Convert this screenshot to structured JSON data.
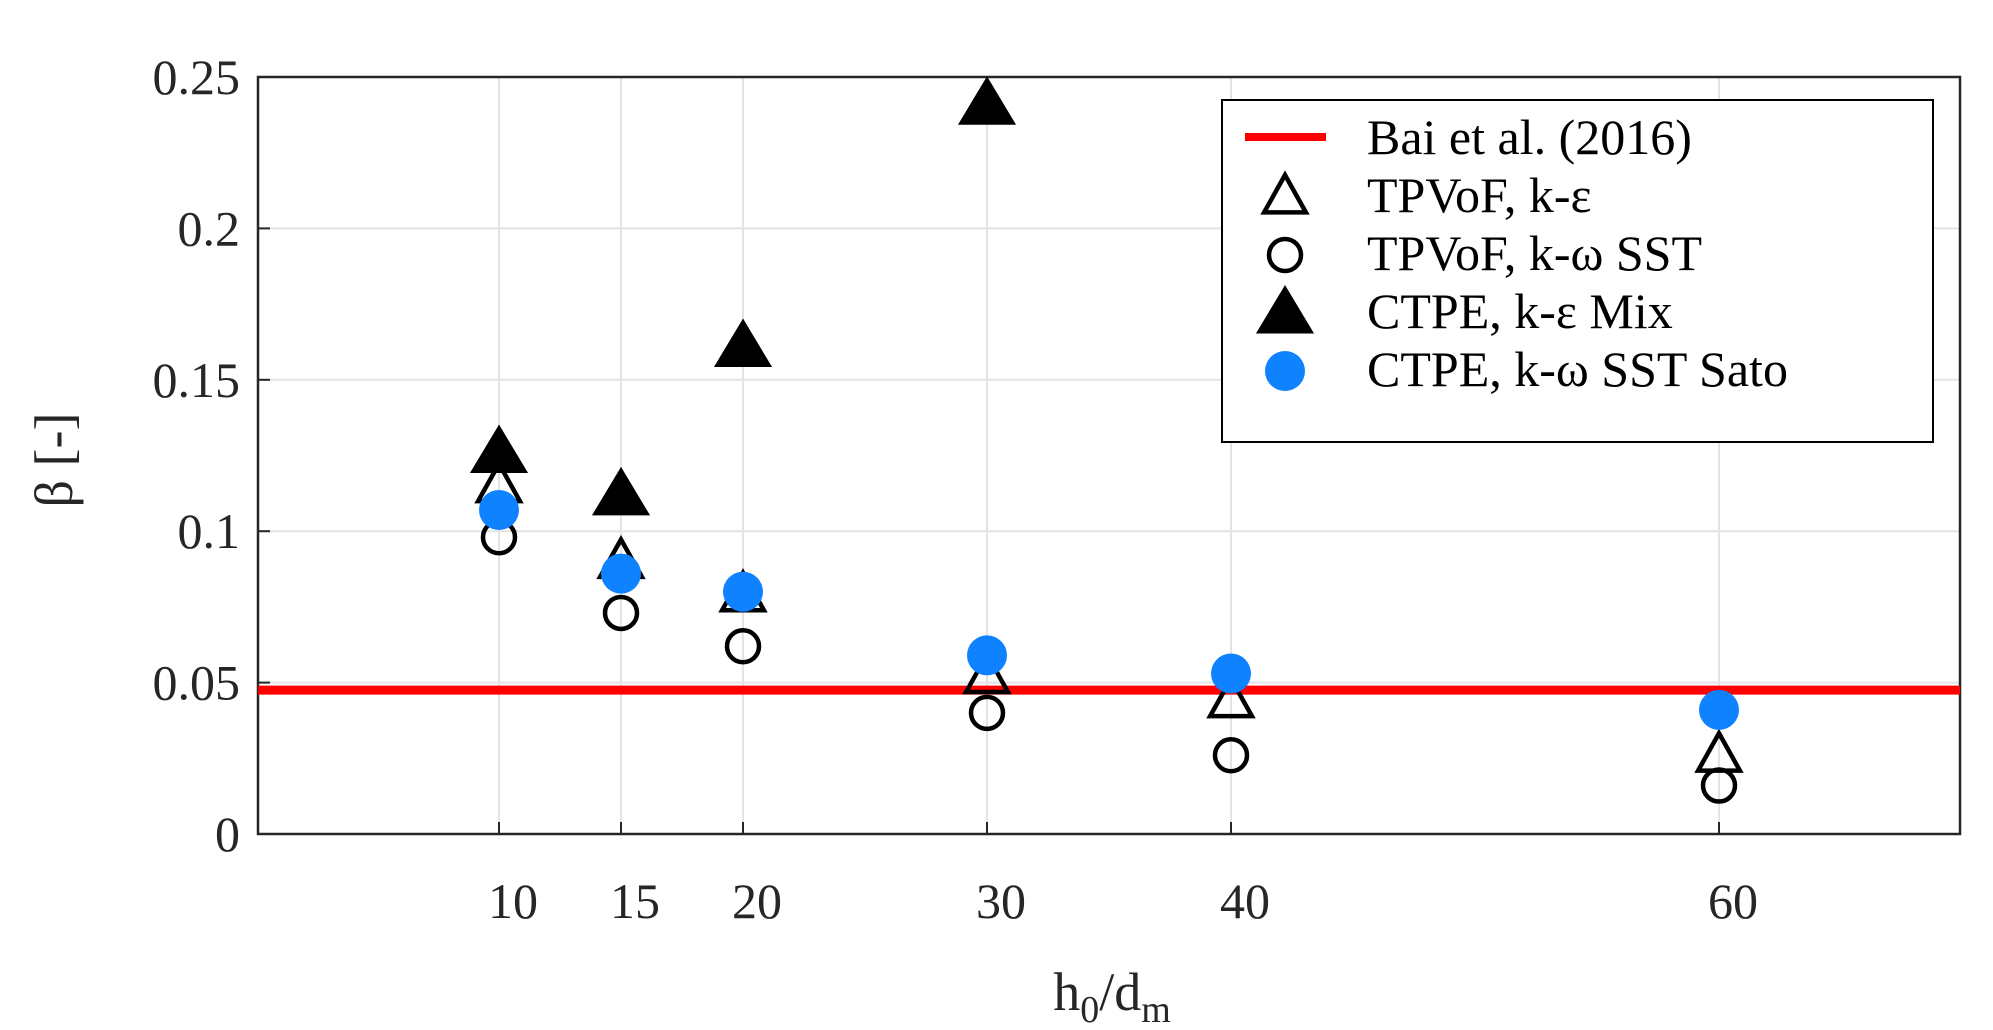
{
  "chart_data": {
    "type": "scatter",
    "title": "",
    "xlabel": {
      "main": "h",
      "sub1": "0",
      "mid": "/d",
      "sub2": "m"
    },
    "ylabel": "β [-]",
    "xlim": [
      0,
      70
    ],
    "ylim": [
      0,
      0.25
    ],
    "xticks": [
      10,
      15,
      20,
      30,
      40,
      60
    ],
    "xtick_labels": [
      "10",
      "15",
      "20",
      "30",
      "40",
      "60"
    ],
    "yticks": [
      0,
      0.05,
      0.1,
      0.15,
      0.2,
      0.25
    ],
    "ytick_labels": [
      "0",
      "0.05",
      "0.1",
      "0.15",
      "0.2",
      "0.25"
    ],
    "grid": true,
    "legend_position": "top-right",
    "reference_line": {
      "name": "Bai et al. (2016)",
      "y": 0.0475,
      "color": "#ff0000"
    },
    "series": [
      {
        "name": "TPVoF, k-ε",
        "marker": "triangle-open",
        "color": "#000000",
        "x": [
          10,
          15,
          20,
          30,
          40,
          60
        ],
        "y": [
          0.115,
          0.09,
          0.079,
          0.052,
          0.044,
          0.026
        ]
      },
      {
        "name": "TPVoF, k-ω SST",
        "marker": "circle-open",
        "color": "#000000",
        "x": [
          10,
          15,
          20,
          30,
          40,
          60
        ],
        "y": [
          0.098,
          0.073,
          0.062,
          0.04,
          0.026,
          0.016
        ]
      },
      {
        "name": "CTPE,  k-ε Mix",
        "marker": "triangle-filled",
        "color": "#000000",
        "x": [
          10,
          15,
          20,
          30
        ],
        "y": [
          0.126,
          0.112,
          0.161,
          0.241
        ]
      },
      {
        "name": "CTPE,  k-ω SST Sato",
        "marker": "circle-filled",
        "color": "#0f82ff",
        "x": [
          10,
          15,
          20,
          30,
          40,
          60
        ],
        "y": [
          0.107,
          0.086,
          0.08,
          0.059,
          0.053,
          0.041
        ]
      }
    ]
  }
}
